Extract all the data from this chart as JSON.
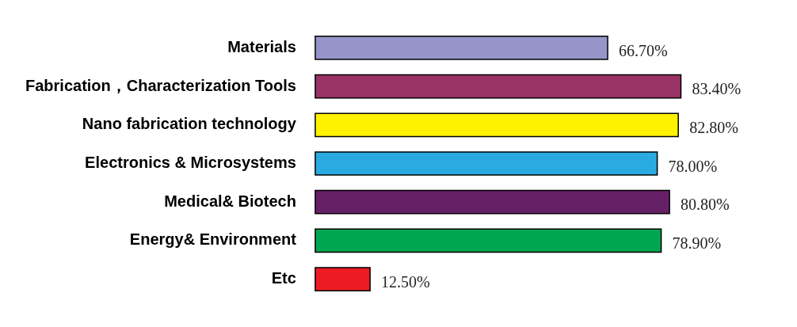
{
  "chart_data": {
    "type": "bar",
    "orientation": "horizontal",
    "categories": [
      "Materials",
      "Fabrication，Characterization Tools",
      "Nano fabrication technology",
      "Electronics & Microsystems",
      "Medical& Biotech",
      "Energy& Environment",
      "Etc"
    ],
    "values": [
      66.7,
      83.4,
      82.8,
      78.0,
      80.8,
      78.9,
      12.5
    ],
    "colors": [
      "#9595c9",
      "#993366",
      "#fff200",
      "#29abe2",
      "#662066",
      "#00a651",
      "#ed1c24"
    ],
    "value_labels": [
      "66.70%",
      "83.40%",
      "82.80%",
      "78.00%",
      "80.80%",
      "78.90%",
      "12.50%"
    ]
  }
}
